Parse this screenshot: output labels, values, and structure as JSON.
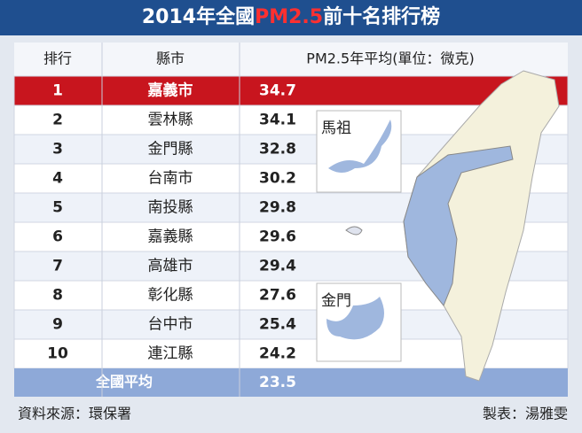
{
  "header": {
    "title_parts": [
      "2014年全國",
      "PM2.5",
      "前十名排行榜"
    ]
  },
  "table": {
    "columns": [
      "排行",
      "縣市",
      "PM2.5年平均(單位：微克)"
    ],
    "rows": [
      [
        1,
        "嘉義市",
        34.7
      ],
      [
        2,
        "雲林縣",
        34.1
      ],
      [
        3,
        "金門縣",
        32.8
      ],
      [
        4,
        "台南市",
        30.2
      ],
      [
        5,
        "南投縣",
        29.8
      ],
      [
        6,
        "嘉義縣",
        29.6
      ],
      [
        7,
        "高雄市",
        29.4
      ],
      [
        8,
        "彰化縣",
        27.6
      ],
      [
        9,
        "台中市",
        25.4
      ],
      [
        10,
        "連江縣",
        24.2
      ]
    ],
    "summary": [
      "全國平均",
      23.5
    ]
  },
  "map": {
    "insets": [
      "馬祖",
      "金門"
    ]
  },
  "footer": {
    "source": "資料來源：環保署",
    "credit": "製表：湯雅雯"
  }
}
